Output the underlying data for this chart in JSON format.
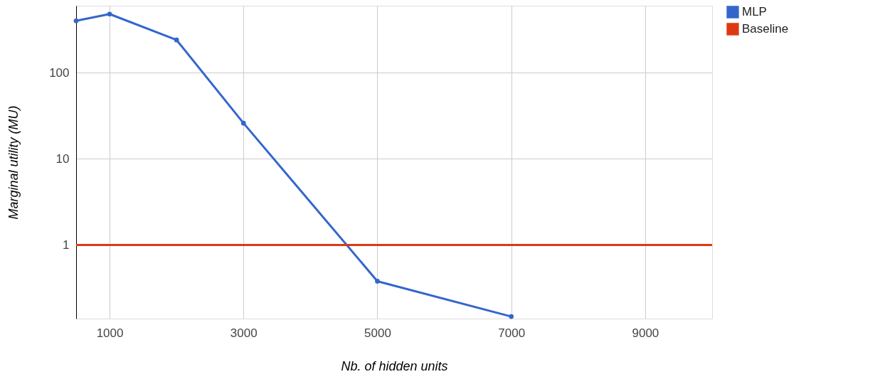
{
  "chart_data": {
    "type": "line",
    "xlabel": "Nb. of hidden units",
    "ylabel": "Marginal utility (MU)",
    "x": [
      500,
      1000,
      2000,
      3000,
      5000,
      7000
    ],
    "series": [
      {
        "name": "MLP",
        "color": "#3366cc",
        "values": [
          400,
          480,
          240,
          26,
          0.38,
          0.148
        ],
        "marker": "circle"
      },
      {
        "name": "Baseline",
        "color": "#dc3912",
        "x": [
          500,
          10000
        ],
        "values": [
          1,
          1
        ],
        "marker": "none"
      }
    ],
    "xlim": [
      500,
      10000
    ],
    "xticks": [
      {
        "value": 1000,
        "label": "1000"
      },
      {
        "value": 3000,
        "label": "3000"
      },
      {
        "value": 5000,
        "label": "5000"
      },
      {
        "value": 7000,
        "label": "7000"
      },
      {
        "value": 9000,
        "label": "9000"
      }
    ],
    "ylim": [
      0.14,
      600
    ],
    "yticks": [
      1,
      10,
      100
    ],
    "log": "y",
    "grid": true,
    "legend": "top right",
    "line_style": "solid"
  }
}
